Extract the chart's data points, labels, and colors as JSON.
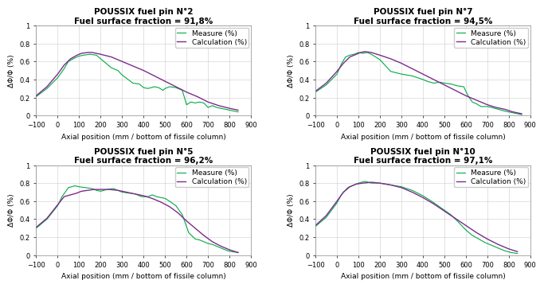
{
  "panels": [
    {
      "title": "POUSSIX fuel pin N°2",
      "subtitle": "Fuel surface fraction = 91,8%",
      "measure_x": [
        -100,
        -50,
        0,
        30,
        50,
        80,
        100,
        120,
        150,
        180,
        200,
        250,
        280,
        300,
        350,
        380,
        400,
        420,
        450,
        470,
        490,
        500,
        520,
        550,
        580,
        600,
        620,
        640,
        660,
        680,
        700,
        720,
        740,
        760,
        780,
        800,
        820,
        840
      ],
      "measure_y": [
        0.21,
        0.3,
        0.42,
        0.52,
        0.6,
        0.64,
        0.66,
        0.67,
        0.68,
        0.67,
        0.63,
        0.53,
        0.5,
        0.45,
        0.36,
        0.35,
        0.31,
        0.3,
        0.32,
        0.31,
        0.28,
        0.3,
        0.32,
        0.31,
        0.28,
        0.12,
        0.15,
        0.14,
        0.15,
        0.14,
        0.09,
        0.11,
        0.09,
        0.08,
        0.07,
        0.06,
        0.05,
        0.04
      ],
      "calc_x": [
        -100,
        -50,
        0,
        30,
        60,
        90,
        110,
        140,
        160,
        200,
        250,
        300,
        350,
        400,
        450,
        500,
        550,
        600,
        650,
        700,
        750,
        800,
        840
      ],
      "calc_y": [
        0.22,
        0.32,
        0.46,
        0.56,
        0.63,
        0.67,
        0.69,
        0.7,
        0.7,
        0.68,
        0.65,
        0.6,
        0.55,
        0.5,
        0.44,
        0.38,
        0.32,
        0.26,
        0.21,
        0.15,
        0.11,
        0.08,
        0.06
      ]
    },
    {
      "title": "POUSSIX fuel pin N°7",
      "subtitle": "Fuel surface fraction = 94,5%",
      "measure_x": [
        -100,
        -50,
        0,
        20,
        40,
        60,
        80,
        100,
        120,
        140,
        160,
        180,
        200,
        250,
        300,
        350,
        400,
        420,
        450,
        480,
        500,
        530,
        560,
        590,
        610,
        630,
        650,
        670,
        700,
        720,
        750,
        780,
        800,
        820,
        840,
        860
      ],
      "measure_y": [
        0.26,
        0.34,
        0.46,
        0.57,
        0.65,
        0.67,
        0.68,
        0.7,
        0.69,
        0.7,
        0.68,
        0.65,
        0.62,
        0.49,
        0.46,
        0.44,
        0.4,
        0.38,
        0.36,
        0.37,
        0.36,
        0.35,
        0.33,
        0.32,
        0.22,
        0.15,
        0.13,
        0.1,
        0.1,
        0.09,
        0.07,
        0.05,
        0.04,
        0.03,
        0.02,
        0.01
      ],
      "calc_x": [
        -100,
        -50,
        0,
        30,
        60,
        90,
        110,
        130,
        160,
        200,
        250,
        300,
        350,
        400,
        450,
        500,
        550,
        600,
        640,
        670,
        700,
        740,
        780,
        820,
        860
      ],
      "calc_y": [
        0.27,
        0.36,
        0.49,
        0.58,
        0.65,
        0.68,
        0.7,
        0.71,
        0.7,
        0.67,
        0.63,
        0.58,
        0.52,
        0.46,
        0.4,
        0.34,
        0.28,
        0.22,
        0.18,
        0.15,
        0.12,
        0.09,
        0.07,
        0.04,
        0.02
      ]
    },
    {
      "title": "POUSSIX fuel pin N°5",
      "subtitle": "Fuel surface fraction = 96,2%",
      "measure_x": [
        -100,
        -50,
        0,
        20,
        50,
        80,
        100,
        130,
        160,
        180,
        200,
        230,
        260,
        280,
        300,
        330,
        360,
        390,
        420,
        440,
        460,
        480,
        500,
        520,
        550,
        580,
        610,
        640,
        660,
        680,
        700,
        720,
        740,
        760,
        790,
        810,
        840
      ],
      "measure_y": [
        0.3,
        0.4,
        0.55,
        0.65,
        0.75,
        0.77,
        0.76,
        0.75,
        0.74,
        0.72,
        0.71,
        0.73,
        0.74,
        0.72,
        0.7,
        0.69,
        0.68,
        0.65,
        0.65,
        0.67,
        0.65,
        0.64,
        0.63,
        0.6,
        0.55,
        0.45,
        0.25,
        0.18,
        0.17,
        0.15,
        0.13,
        0.12,
        0.1,
        0.08,
        0.05,
        0.04,
        0.03
      ],
      "calc_x": [
        -100,
        -50,
        0,
        30,
        60,
        90,
        110,
        140,
        170,
        200,
        240,
        280,
        320,
        360,
        400,
        440,
        480,
        520,
        560,
        600,
        640,
        680,
        720,
        760,
        800,
        840
      ],
      "calc_y": [
        0.31,
        0.41,
        0.56,
        0.65,
        0.67,
        0.69,
        0.71,
        0.72,
        0.73,
        0.73,
        0.73,
        0.72,
        0.7,
        0.68,
        0.66,
        0.63,
        0.59,
        0.54,
        0.47,
        0.38,
        0.3,
        0.22,
        0.15,
        0.1,
        0.06,
        0.03
      ]
    },
    {
      "title": "POUSSIX fuel pin N°10",
      "subtitle": "Fuel surface fraction = 97,1%",
      "measure_x": [
        -100,
        -50,
        0,
        20,
        50,
        80,
        100,
        130,
        160,
        200,
        250,
        300,
        350,
        400,
        440,
        470,
        500,
        530,
        560,
        600,
        630,
        660,
        690,
        720,
        750,
        780,
        810,
        840
      ],
      "measure_y": [
        0.32,
        0.42,
        0.58,
        0.67,
        0.75,
        0.78,
        0.8,
        0.82,
        0.8,
        0.8,
        0.78,
        0.76,
        0.72,
        0.66,
        0.6,
        0.55,
        0.5,
        0.45,
        0.38,
        0.28,
        0.22,
        0.18,
        0.14,
        0.11,
        0.08,
        0.05,
        0.03,
        0.02
      ],
      "calc_x": [
        -100,
        -50,
        0,
        30,
        60,
        90,
        120,
        160,
        200,
        250,
        300,
        350,
        400,
        450,
        500,
        550,
        600,
        650,
        700,
        750,
        800,
        840
      ],
      "calc_y": [
        0.33,
        0.44,
        0.6,
        0.7,
        0.76,
        0.79,
        0.8,
        0.81,
        0.8,
        0.78,
        0.75,
        0.7,
        0.64,
        0.57,
        0.49,
        0.41,
        0.33,
        0.25,
        0.18,
        0.12,
        0.07,
        0.04
      ]
    }
  ],
  "measure_color": "#00aa44",
  "calc_color": "#7B2D8B",
  "xlim": [
    -100,
    900
  ],
  "ylim": [
    0,
    1
  ],
  "xlabel": "Axial position (mm / bottom of fissile column)",
  "ylabel": "ΔΦ/Φ (%)",
  "xticks": [
    -100,
    0,
    100,
    200,
    300,
    400,
    500,
    600,
    700,
    800,
    900
  ],
  "ytick_vals": [
    0,
    0.2,
    0.4,
    0.6,
    0.8,
    1
  ],
  "ytick_labels": [
    "0",
    "0.2",
    "0.4",
    "0.6",
    "0.8",
    "1"
  ],
  "legend_measure": "Measure (%)",
  "legend_calc": "Calculation (%)",
  "grid_color": "#cccccc",
  "background_color": "#ffffff",
  "title_fontsize": 7.5,
  "axis_label_fontsize": 6.5,
  "tick_fontsize": 6,
  "legend_fontsize": 6.5
}
